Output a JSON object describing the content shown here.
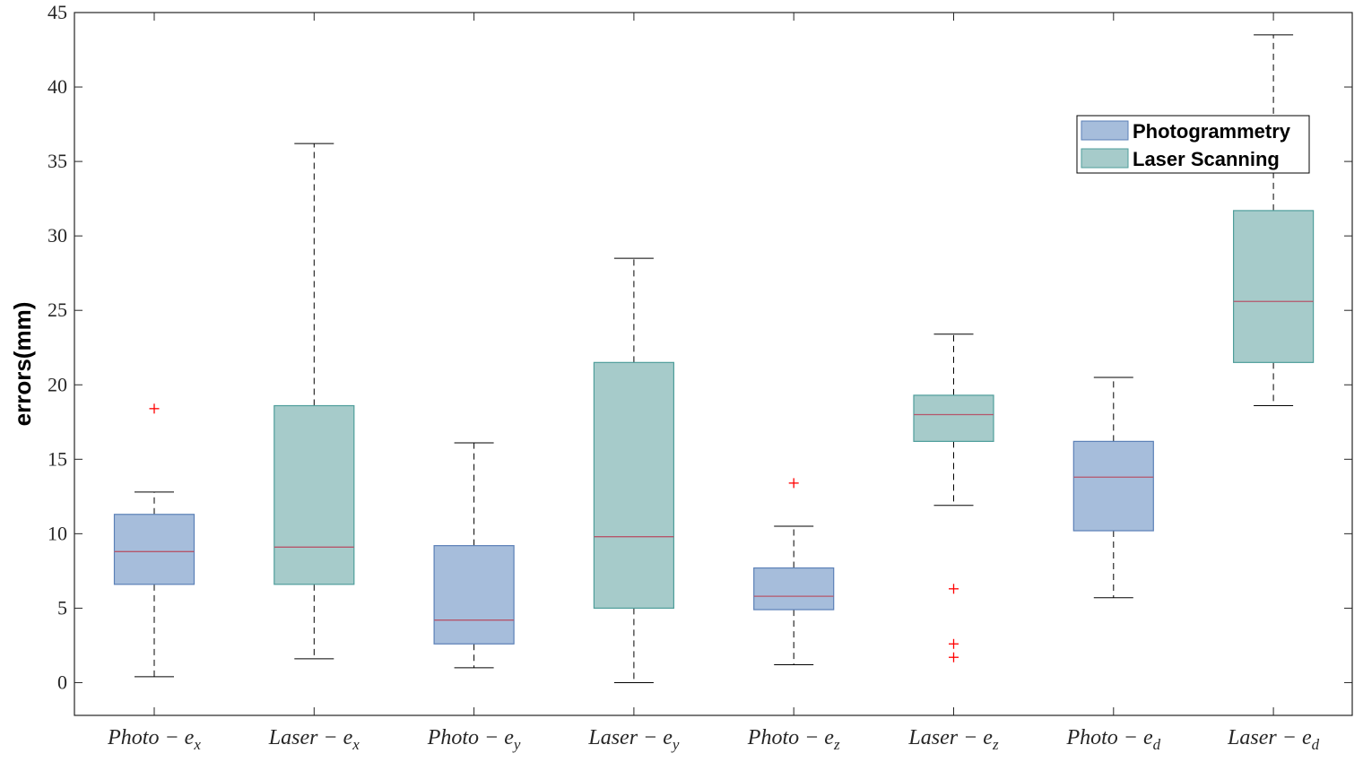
{
  "chart_data": {
    "type": "box",
    "ylabel": "errors(mm)",
    "xlabel": "",
    "ylim": [
      -2.2,
      45
    ],
    "yticks": [
      0,
      5,
      10,
      15,
      20,
      25,
      30,
      35,
      40,
      45
    ],
    "grid": false,
    "legend": {
      "position": "top-right",
      "entries": [
        "Photogrammetry",
        "Laser Scanning"
      ]
    },
    "colors": {
      "Photogrammetry": {
        "fill": "#a6bddb",
        "stroke": "#5b80b7"
      },
      "Laser Scanning": {
        "fill": "#a6cbca",
        "stroke": "#4f9e9b"
      },
      "median": "#b5566b",
      "outlier": "#ff0000",
      "whisker": "#000000"
    },
    "categories": [
      {
        "base": "Photo",
        "sub": "x",
        "group": "Photogrammetry",
        "min": 0.4,
        "q1": 6.6,
        "median": 8.8,
        "q3": 11.3,
        "max": 12.8,
        "outliers": [
          18.4
        ]
      },
      {
        "base": "Laser",
        "sub": "x",
        "group": "Laser Scanning",
        "min": 1.6,
        "q1": 6.6,
        "median": 9.1,
        "q3": 18.6,
        "max": 36.2,
        "outliers": []
      },
      {
        "base": "Photo",
        "sub": "y",
        "group": "Photogrammetry",
        "min": 1.0,
        "q1": 2.6,
        "median": 4.2,
        "q3": 9.2,
        "max": 16.1,
        "outliers": []
      },
      {
        "base": "Laser",
        "sub": "y",
        "group": "Laser Scanning",
        "min": 0.0,
        "q1": 5.0,
        "median": 9.8,
        "q3": 21.5,
        "max": 28.5,
        "outliers": []
      },
      {
        "base": "Photo",
        "sub": "z",
        "group": "Photogrammetry",
        "min": 1.2,
        "q1": 4.9,
        "median": 5.8,
        "q3": 7.7,
        "max": 10.5,
        "outliers": [
          13.4
        ]
      },
      {
        "base": "Laser",
        "sub": "z",
        "group": "Laser Scanning",
        "min": 11.9,
        "q1": 16.2,
        "median": 18.0,
        "q3": 19.3,
        "max": 23.4,
        "outliers": [
          6.3,
          2.6,
          1.7
        ]
      },
      {
        "base": "Photo",
        "sub": "d",
        "group": "Photogrammetry",
        "min": 5.7,
        "q1": 10.2,
        "median": 13.8,
        "q3": 16.2,
        "max": 20.5,
        "outliers": []
      },
      {
        "base": "Laser",
        "sub": "d",
        "group": "Laser Scanning",
        "min": 18.6,
        "q1": 21.5,
        "median": 25.6,
        "q3": 31.7,
        "max": 43.5,
        "outliers": []
      }
    ],
    "label_operator": " − e"
  }
}
